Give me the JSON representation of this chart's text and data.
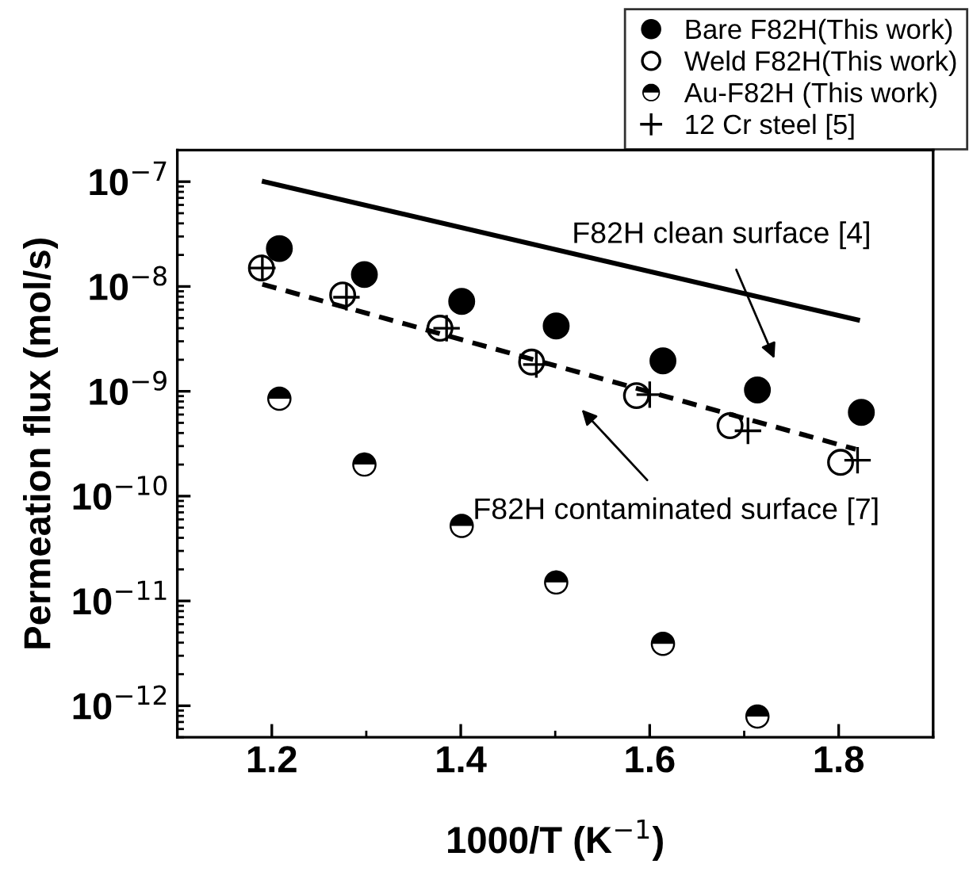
{
  "chart_data": {
    "type": "scatter",
    "xlabel": "1000/T (K$^{−1}$)",
    "ylabel": "Permeation flux (mol/s)",
    "log": "y",
    "xlim": [
      1.1,
      1.9
    ],
    "xticks": [
      1.2,
      1.4,
      1.6,
      1.8
    ],
    "ylim": [
      5e-13,
      2e-07
    ],
    "yticks": [
      {
        "value": 1e-12,
        "label": "10$^{−12}$"
      },
      {
        "value": 1e-11,
        "label": "10$^{−11}$"
      },
      {
        "value": 1e-10,
        "label": "10$^{−10}$"
      },
      {
        "value": 1e-09,
        "label": "10$^{−9}$"
      },
      {
        "value": 1e-08,
        "label": "10$^{−8}$"
      },
      {
        "value": 1e-07,
        "label": "10$^{−7}$"
      }
    ],
    "legend": "top right",
    "series": [
      {
        "name": "Bare F82H(This work)",
        "marker": "circle",
        "color": "#000000",
        "x": [
          1.208,
          1.298,
          1.401,
          1.501,
          1.614,
          1.714,
          1.824
        ],
        "values": [
          2.3e-08,
          1.3e-08,
          7.2e-09,
          4.2e-09,
          1.95e-09,
          1.03e-09,
          6.3e-10
        ]
      },
      {
        "name": "Weld F82H(This work)",
        "marker": "circle",
        "color": "#000000",
        "x": [
          1.189,
          1.275,
          1.378,
          1.475,
          1.586,
          1.685,
          1.802
        ],
        "values": [
          1.5e-08,
          8.3e-09,
          4e-09,
          1.9e-09,
          9.1e-10,
          4.7e-10,
          2.1e-10
        ]
      },
      {
        "name": "Au-F82H (This work)",
        "marker": "circle",
        "color": "#000000",
        "x": [
          1.208,
          1.298,
          1.401,
          1.501,
          1.614,
          1.714
        ],
        "values": [
          8.5e-10,
          2e-10,
          5.2e-11,
          1.5e-11,
          3.9e-12,
          7.9e-13
        ]
      },
      {
        "name": "12 Cr steel [5]",
        "marker": "cross",
        "color": "#000000",
        "x": [
          1.19,
          1.279,
          1.385,
          1.48,
          1.6,
          1.704,
          1.82
        ],
        "values": [
          1.5e-08,
          7.9e-09,
          4e-09,
          1.8e-09,
          9.3e-10,
          4.2e-10,
          2.2e-10
        ]
      },
      {
        "type": "line",
        "line_style": "solid",
        "color": "#000000",
        "x": [
          1.192,
          1.82
        ],
        "values": [
          1e-07,
          4.8e-09
        ]
      },
      {
        "type": "line",
        "line_style": "dashed",
        "color": "#000000",
        "x": [
          1.19,
          1.818
        ],
        "values": [
          1.05e-08,
          2.8e-10
        ]
      }
    ],
    "annotations": [
      "F82H clean surface [4]",
      "F82H contaminated surface [7]"
    ]
  }
}
